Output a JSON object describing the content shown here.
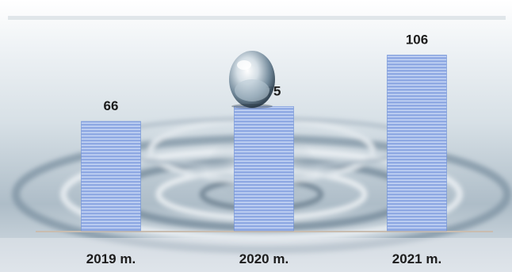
{
  "chart_data": {
    "type": "bar",
    "categories": [
      "2019 m.",
      "2020 m.",
      "2021 m."
    ],
    "values": [
      66,
      75,
      106
    ],
    "title": "",
    "xlabel": "",
    "ylabel": "",
    "ylim": [
      0,
      110
    ],
    "grid": false,
    "legend": "none",
    "data_labels": true
  },
  "colors": {
    "bar_fill": "#8fa9e3",
    "bar_stripe": "#c9d8f5",
    "bar_edge": "#6d8fd6",
    "baseline": "#c9bdb0",
    "water_light": "#f2f5f7",
    "water_mid": "#c7d2da",
    "water_dark": "#5e7384"
  },
  "decoration": {
    "background": "water-splash-photo",
    "droplet": "water-droplet-icon"
  }
}
